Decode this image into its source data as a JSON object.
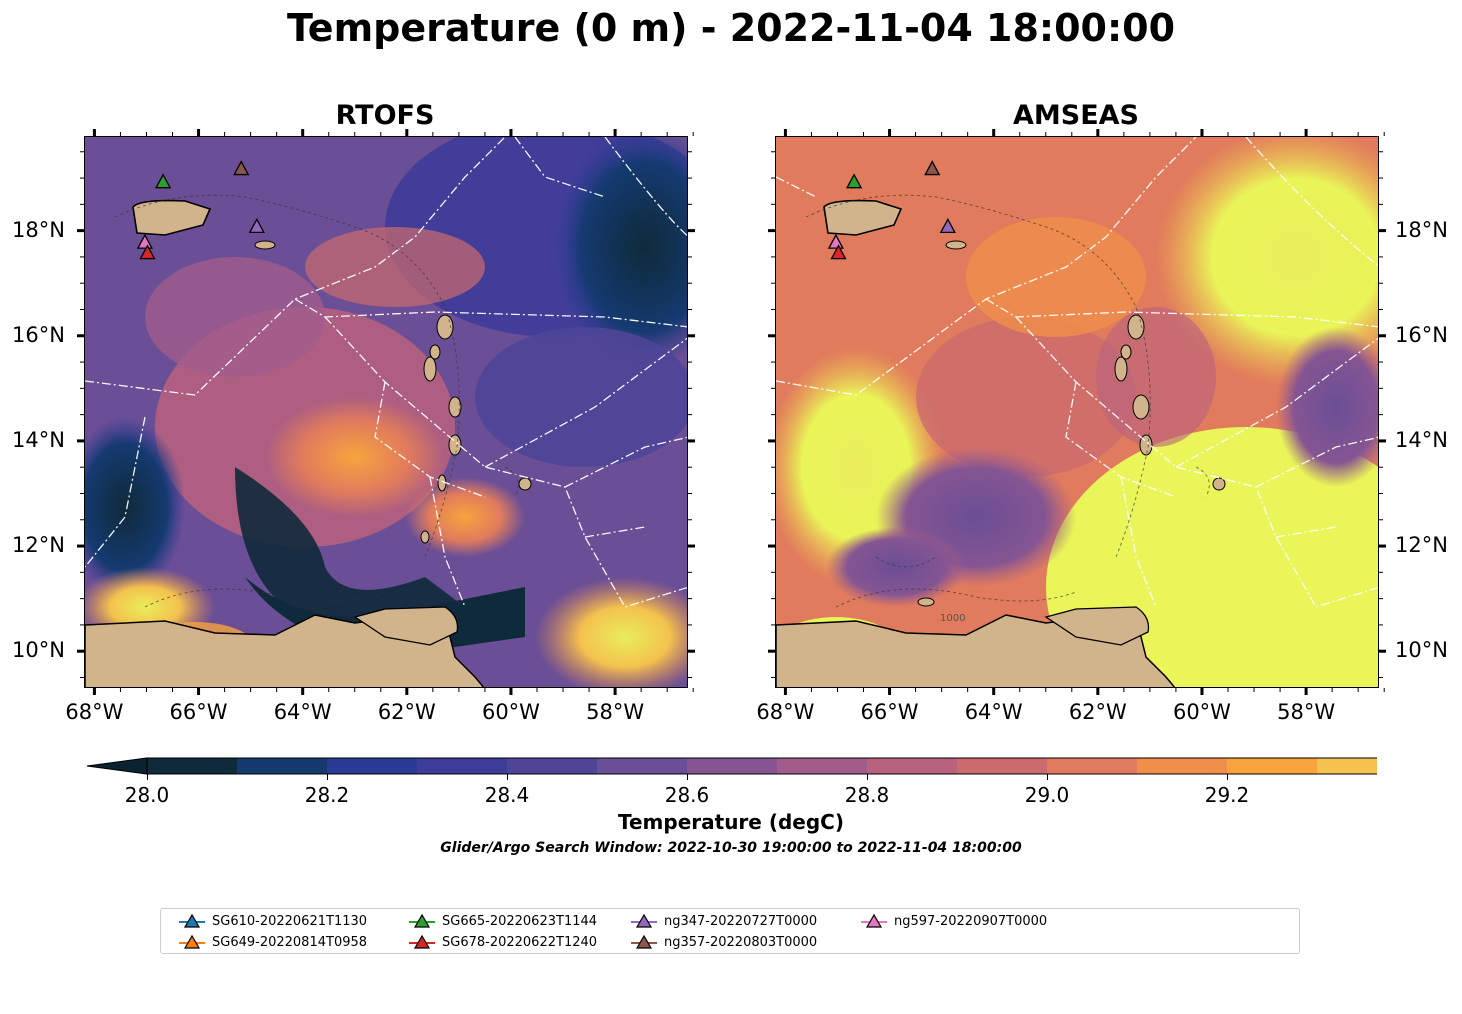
{
  "title": "Temperature (0 m) - 2022-11-04 18:00:00",
  "panels": [
    {
      "title": "RTOFS"
    },
    {
      "title": "AMSEAS"
    }
  ],
  "axes": {
    "lat_labels": [
      "18°N",
      "16°N",
      "14°N",
      "12°N",
      "10°N"
    ],
    "lon_labels": [
      "68°W",
      "66°W",
      "64°W",
      "62°W",
      "60°W",
      "58°W"
    ],
    "lat_range": [
      9.3,
      19.8
    ],
    "lon_range": [
      -68.2,
      -56.6
    ]
  },
  "colorbar": {
    "label": "Temperature (degC)",
    "ticks": [
      "28.0",
      "28.2",
      "28.4",
      "28.6",
      "28.8",
      "29.0",
      "29.2"
    ],
    "range": [
      28.0,
      29.3
    ],
    "step": 0.1,
    "colors": [
      "#0f2a3a",
      "#143a70",
      "#2a3b95",
      "#3d3c98",
      "#4e4597",
      "#6a4e96",
      "#855592",
      "#a15c8c",
      "#b8627e",
      "#cc6b6e",
      "#e07b5d",
      "#f08f4a",
      "#f7a43e",
      "#f4c24e",
      "#e9ed5a"
    ],
    "extend_low": "#0b2230",
    "extend_high": "#e9f558"
  },
  "search_window": "Glider/Argo Search Window: 2022-10-30 19:00:00 to 2022-11-04 18:00:00",
  "land_color": "#d2b48c",
  "contour_label": "1000",
  "legend": [
    {
      "label": "SG610-20220621T1130",
      "color": "#1f77b4"
    },
    {
      "label": "SG649-20220814T0958",
      "color": "#ff7f0e"
    },
    {
      "label": "SG665-20220623T1144",
      "color": "#2ca02c"
    },
    {
      "label": "SG678-20220622T1240",
      "color": "#d62728"
    },
    {
      "label": "ng347-20220727T0000",
      "color": "#9467bd"
    },
    {
      "label": "ng357-20220803T0000",
      "color": "#8c564b"
    },
    {
      "label": "ng597-20220907T0000",
      "color": "#e377c2"
    }
  ],
  "glider_positions": [
    {
      "id": "SG665-20220623T1144",
      "lon": -66.7,
      "lat": 18.95,
      "color": "#2ca02c"
    },
    {
      "id": "ng357-20220803T0000",
      "lon": -65.2,
      "lat": 19.2,
      "color": "#8c564b"
    },
    {
      "id": "ng347-20220727T0000",
      "lon": -64.9,
      "lat": 18.1,
      "color": "#9467bd"
    },
    {
      "id": "ng597-20220907T0000",
      "lon": -67.05,
      "lat": 17.8,
      "color": "#e377c2"
    },
    {
      "id": "SG678-20220622T1240",
      "lon": -67.0,
      "lat": 17.6,
      "color": "#d62728"
    }
  ]
}
